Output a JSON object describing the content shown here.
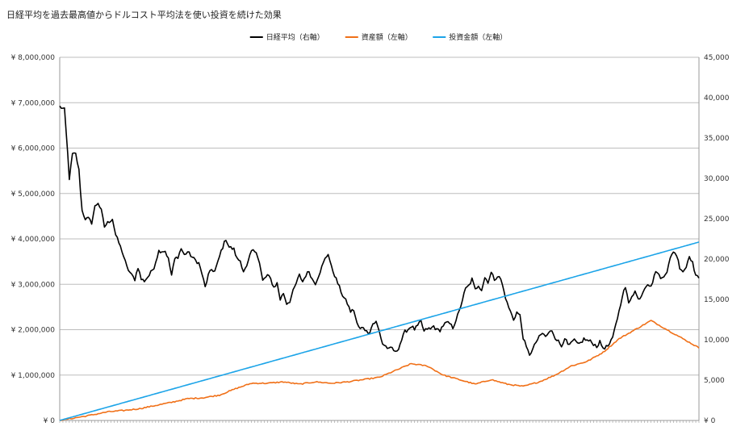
{
  "chart_data": {
    "type": "line",
    "title": "日経平均を過去最高値からドルコスト平均法を使い投資を続けた効果",
    "left_axis": {
      "min": 0,
      "max": 8000000,
      "step": 1000000,
      "tick_labels": [
        "¥ 0",
        "¥ 1,000,000",
        "¥ 2,000,000",
        "¥ 3,000,000",
        "¥ 4,000,000",
        "¥ 5,000,000",
        "¥ 6,000,000",
        "¥ 7,000,000",
        "¥ 8,000,000"
      ]
    },
    "right_axis": {
      "min": 0,
      "max": 45000,
      "step": 5000,
      "tick_labels": [
        "¥ 0",
        "5,000",
        "10,000",
        "15,000",
        "20,000",
        "25,000",
        "30,000",
        "35,000",
        "40,000",
        "45,000"
      ]
    },
    "grid": true,
    "legend_position": "top-center",
    "x_points": 400,
    "series": [
      {
        "name": "日経平均（右軸）",
        "axis": "right",
        "color": "#000000",
        "anchors": [
          [
            0,
            38900
          ],
          [
            3,
            38500
          ],
          [
            5,
            33000
          ],
          [
            6,
            30000
          ],
          [
            8,
            33000
          ],
          [
            10,
            33000
          ],
          [
            12,
            31000
          ],
          [
            14,
            26000
          ],
          [
            16,
            25000
          ],
          [
            18,
            25000
          ],
          [
            20,
            24500
          ],
          [
            22,
            26500
          ],
          [
            24,
            27000
          ],
          [
            26,
            26000
          ],
          [
            28,
            24000
          ],
          [
            30,
            24500
          ],
          [
            33,
            25000
          ],
          [
            35,
            23000
          ],
          [
            37,
            22000
          ],
          [
            39,
            21000
          ],
          [
            42,
            19000
          ],
          [
            45,
            18000
          ],
          [
            47,
            17500
          ],
          [
            49,
            19000
          ],
          [
            51,
            17500
          ],
          [
            53,
            17300
          ],
          [
            56,
            18000
          ],
          [
            59,
            19000
          ],
          [
            62,
            21000
          ],
          [
            66,
            21000
          ],
          [
            68,
            20000
          ],
          [
            70,
            18000
          ],
          [
            72,
            20000
          ],
          [
            74,
            20300
          ],
          [
            76,
            21300
          ],
          [
            78,
            20500
          ],
          [
            80,
            20900
          ],
          [
            84,
            20000
          ],
          [
            87,
            19500
          ],
          [
            89,
            18200
          ],
          [
            91,
            16500
          ],
          [
            93,
            18000
          ],
          [
            95,
            18700
          ],
          [
            97,
            18500
          ],
          [
            99,
            19600
          ],
          [
            101,
            21000
          ],
          [
            104,
            22500
          ],
          [
            106,
            21500
          ],
          [
            109,
            21200
          ],
          [
            111,
            20000
          ],
          [
            113,
            19800
          ],
          [
            115,
            18500
          ],
          [
            117,
            19000
          ],
          [
            120,
            21000
          ],
          [
            123,
            21000
          ],
          [
            125,
            19500
          ],
          [
            127,
            17300
          ],
          [
            130,
            18000
          ],
          [
            132,
            17500
          ],
          [
            134,
            16500
          ],
          [
            136,
            17000
          ],
          [
            138,
            15000
          ],
          [
            140,
            15800
          ],
          [
            142,
            14500
          ],
          [
            144,
            14800
          ],
          [
            146,
            16000
          ],
          [
            148,
            17000
          ],
          [
            150,
            18000
          ],
          [
            152,
            17200
          ],
          [
            154,
            18000
          ],
          [
            156,
            18500
          ],
          [
            158,
            17500
          ],
          [
            160,
            17000
          ],
          [
            162,
            18000
          ],
          [
            164,
            19000
          ],
          [
            166,
            20000
          ],
          [
            168,
            20700
          ],
          [
            170,
            19000
          ],
          [
            172,
            18000
          ],
          [
            175,
            16500
          ],
          [
            177,
            15500
          ],
          [
            180,
            14500
          ],
          [
            182,
            13500
          ],
          [
            184,
            13700
          ],
          [
            186,
            12000
          ],
          [
            188,
            11300
          ],
          [
            190,
            11600
          ],
          [
            192,
            11000
          ],
          [
            194,
            11000
          ],
          [
            196,
            12000
          ],
          [
            198,
            12200
          ],
          [
            200,
            11000
          ],
          [
            202,
            9500
          ],
          [
            204,
            9200
          ],
          [
            206,
            8800
          ],
          [
            208,
            9000
          ],
          [
            210,
            8400
          ],
          [
            212,
            9000
          ],
          [
            214,
            10000
          ],
          [
            216,
            11000
          ],
          [
            218,
            11300
          ],
          [
            220,
            11700
          ],
          [
            222,
            11300
          ],
          [
            224,
            11700
          ],
          [
            226,
            12300
          ],
          [
            228,
            11000
          ],
          [
            230,
            11400
          ],
          [
            232,
            11300
          ],
          [
            234,
            11700
          ],
          [
            236,
            11200
          ],
          [
            238,
            11200
          ],
          [
            240,
            11800
          ],
          [
            242,
            12100
          ],
          [
            244,
            12000
          ],
          [
            246,
            11500
          ],
          [
            248,
            12500
          ],
          [
            250,
            13500
          ],
          [
            252,
            15000
          ],
          [
            254,
            16300
          ],
          [
            256,
            16700
          ],
          [
            258,
            17500
          ],
          [
            260,
            16200
          ],
          [
            262,
            16800
          ],
          [
            264,
            16200
          ],
          [
            266,
            17700
          ],
          [
            268,
            17200
          ],
          [
            270,
            18300
          ],
          [
            272,
            17500
          ],
          [
            274,
            17900
          ],
          [
            276,
            17500
          ],
          [
            278,
            16000
          ],
          [
            280,
            14500
          ],
          [
            282,
            13500
          ],
          [
            284,
            12500
          ],
          [
            286,
            13400
          ],
          [
            288,
            13000
          ],
          [
            290,
            10300
          ],
          [
            292,
            9000
          ],
          [
            294,
            8200
          ],
          [
            296,
            8800
          ],
          [
            298,
            9700
          ],
          [
            300,
            10300
          ],
          [
            302,
            10800
          ],
          [
            304,
            10400
          ],
          [
            306,
            10800
          ],
          [
            308,
            11200
          ],
          [
            310,
            10300
          ],
          [
            312,
            9800
          ],
          [
            314,
            9200
          ],
          [
            316,
            10300
          ],
          [
            318,
            9300
          ],
          [
            320,
            9500
          ],
          [
            322,
            10000
          ],
          [
            324,
            9400
          ],
          [
            326,
            9600
          ],
          [
            328,
            10100
          ],
          [
            330,
            9900
          ],
          [
            332,
            9800
          ],
          [
            334,
            9500
          ],
          [
            336,
            9200
          ],
          [
            338,
            9700
          ],
          [
            340,
            9000
          ],
          [
            342,
            9100
          ],
          [
            344,
            9400
          ],
          [
            346,
            10200
          ],
          [
            348,
            12000
          ],
          [
            350,
            13500
          ],
          [
            352,
            15500
          ],
          [
            354,
            16500
          ],
          [
            356,
            14500
          ],
          [
            358,
            15500
          ],
          [
            360,
            16000
          ],
          [
            362,
            15000
          ],
          [
            364,
            15500
          ],
          [
            366,
            16500
          ],
          [
            368,
            17000
          ],
          [
            370,
            16500
          ],
          [
            372,
            18000
          ],
          [
            374,
            18500
          ],
          [
            376,
            17500
          ],
          [
            378,
            18000
          ],
          [
            380,
            18500
          ],
          [
            382,
            20000
          ],
          [
            384,
            21000
          ],
          [
            386,
            20500
          ],
          [
            388,
            19000
          ],
          [
            390,
            18500
          ],
          [
            392,
            19000
          ],
          [
            394,
            20500
          ],
          [
            396,
            19500
          ],
          [
            398,
            18000
          ],
          [
            400,
            17500
          ]
        ],
        "anchors_x_max": 400
      },
      {
        "name": "資産額（左軸）",
        "axis": "left",
        "color": "#f07018",
        "anchors": [
          [
            0,
            0
          ],
          [
            10,
            60000
          ],
          [
            20,
            120000
          ],
          [
            30,
            190000
          ],
          [
            40,
            220000
          ],
          [
            50,
            260000
          ],
          [
            60,
            330000
          ],
          [
            70,
            400000
          ],
          [
            80,
            480000
          ],
          [
            90,
            500000
          ],
          [
            100,
            560000
          ],
          [
            110,
            700000
          ],
          [
            120,
            820000
          ],
          [
            130,
            820000
          ],
          [
            140,
            850000
          ],
          [
            150,
            800000
          ],
          [
            160,
            850000
          ],
          [
            170,
            820000
          ],
          [
            180,
            850000
          ],
          [
            190,
            900000
          ],
          [
            200,
            950000
          ],
          [
            210,
            1100000
          ],
          [
            220,
            1250000
          ],
          [
            230,
            1200000
          ],
          [
            240,
            1000000
          ],
          [
            250,
            900000
          ],
          [
            260,
            800000
          ],
          [
            270,
            900000
          ],
          [
            280,
            800000
          ],
          [
            290,
            750000
          ],
          [
            300,
            850000
          ],
          [
            310,
            1000000
          ],
          [
            320,
            1200000
          ],
          [
            330,
            1300000
          ],
          [
            340,
            1500000
          ],
          [
            350,
            1800000
          ],
          [
            360,
            2000000
          ],
          [
            370,
            2200000
          ],
          [
            380,
            2000000
          ],
          [
            390,
            1800000
          ],
          [
            400,
            1600000
          ]
        ],
        "anchors_x_max": 400
      },
      {
        "name": "投資金額（左軸）",
        "axis": "left",
        "color": "#1ca4e8",
        "anchors": [
          [
            0,
            0
          ],
          [
            400,
            3930000
          ]
        ],
        "anchors_x_max": 400
      }
    ]
  }
}
